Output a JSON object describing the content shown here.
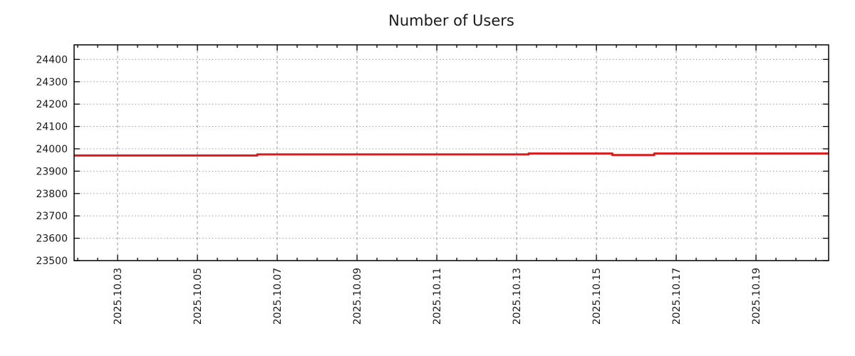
{
  "chart_data": {
    "type": "line",
    "title": "Number of Users",
    "legend": "none",
    "grid": true,
    "series": [
      {
        "name": "Number of Users",
        "color": "#d81b1d",
        "line_width": 3,
        "points": [
          [
            1.91,
            23970
          ],
          [
            6.5,
            23970
          ],
          [
            6.5,
            23975
          ],
          [
            13.3,
            23975
          ],
          [
            13.3,
            23979
          ],
          [
            15.4,
            23979
          ],
          [
            15.4,
            23972
          ],
          [
            16.45,
            23972
          ],
          [
            16.45,
            23979
          ],
          [
            20.82,
            23979
          ]
        ]
      }
    ],
    "x_axis": {
      "unit": "day of October 2025",
      "range": [
        1.91,
        20.82
      ],
      "major_ticks": [
        3,
        5,
        7,
        9,
        11,
        13,
        15,
        17,
        19
      ],
      "major_tick_labels": [
        "2025.10.03",
        "2025.10.05",
        "2025.10.07",
        "2025.10.09",
        "2025.10.11",
        "2025.10.13",
        "2025.10.15",
        "2025.10.17",
        "2025.10.19"
      ],
      "minor_tick_step": 0.5
    },
    "y_axis": {
      "range": [
        23500,
        24465
      ],
      "ticks": [
        23500,
        23600,
        23700,
        23800,
        23900,
        24000,
        24100,
        24200,
        24300,
        24400
      ],
      "tick_labels": [
        "23500",
        "23600",
        "23700",
        "23800",
        "23900",
        "24000",
        "24100",
        "24200",
        "24300",
        "24400"
      ],
      "tick_step": 100
    },
    "colors": {
      "line": "#d81b1d",
      "grid": "#999999",
      "frame": "#000000",
      "text": "#1a1a1a",
      "background": "#ffffff"
    }
  }
}
